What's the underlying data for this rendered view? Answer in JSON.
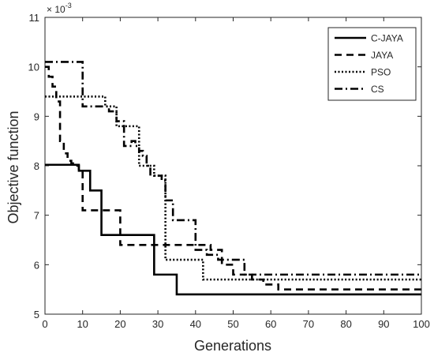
{
  "chart_data": {
    "type": "line",
    "title": "",
    "xlabel": "Generations",
    "ylabel": "Objective function",
    "xlim": [
      0,
      100
    ],
    "ylim": [
      5,
      11
    ],
    "y_multiplier": {
      "base": "× 10",
      "exponent": "-3"
    },
    "xticks": [
      0,
      10,
      20,
      30,
      40,
      50,
      60,
      70,
      80,
      90,
      100
    ],
    "yticks": [
      5,
      6,
      7,
      8,
      9,
      10,
      11
    ],
    "xtick_labels": [
      "0",
      "10",
      "20",
      "30",
      "40",
      "50",
      "60",
      "70",
      "80",
      "90",
      "100"
    ],
    "ytick_labels": [
      "5",
      "6",
      "7",
      "8",
      "9",
      "10",
      "11"
    ],
    "grid": false,
    "legend_position": "top-right",
    "step_plot": true,
    "series": [
      {
        "name": "C-JAYA",
        "color": "#000000",
        "dash": "solid",
        "x": [
          0,
          4,
          9,
          12,
          15,
          27,
          29,
          33,
          35,
          100
        ],
        "y": [
          8.02,
          8.02,
          7.9,
          7.5,
          6.6,
          6.6,
          5.8,
          5.8,
          5.4,
          5.4
        ]
      },
      {
        "name": "JAYA",
        "color": "#000000",
        "dash": "dashed",
        "x": [
          0,
          1,
          2,
          3,
          4,
          5,
          6,
          7,
          8,
          9,
          10,
          17,
          20,
          40,
          44,
          47,
          50,
          55,
          58,
          62,
          100
        ],
        "y": [
          10.0,
          9.8,
          9.6,
          9.3,
          8.5,
          8.25,
          8.1,
          8.05,
          8.0,
          7.9,
          7.1,
          7.1,
          6.4,
          6.4,
          6.3,
          6.0,
          5.8,
          5.7,
          5.6,
          5.5,
          5.5
        ]
      },
      {
        "name": "PSO",
        "color": "#000000",
        "dash": "dotted",
        "x": [
          0,
          14,
          16,
          19,
          25,
          26,
          29,
          31,
          32,
          42,
          100
        ],
        "y": [
          9.4,
          9.4,
          9.2,
          8.8,
          8.0,
          8.0,
          7.8,
          7.8,
          6.1,
          5.7,
          5.7
        ]
      },
      {
        "name": "CS",
        "color": "#000000",
        "dash": "dashdot",
        "x": [
          0,
          9,
          10,
          15,
          17,
          19,
          21,
          23,
          24,
          25,
          26,
          27,
          28,
          30,
          31,
          32,
          33,
          34,
          36,
          40,
          43,
          46,
          48,
          53,
          55,
          100
        ],
        "y": [
          10.1,
          10.1,
          9.2,
          9.2,
          9.1,
          8.9,
          8.4,
          8.5,
          8.4,
          8.3,
          8.2,
          8.0,
          7.8,
          7.8,
          7.7,
          7.3,
          7.3,
          6.9,
          6.9,
          6.3,
          6.2,
          6.1,
          6.1,
          5.8,
          5.8,
          5.8
        ]
      }
    ]
  }
}
